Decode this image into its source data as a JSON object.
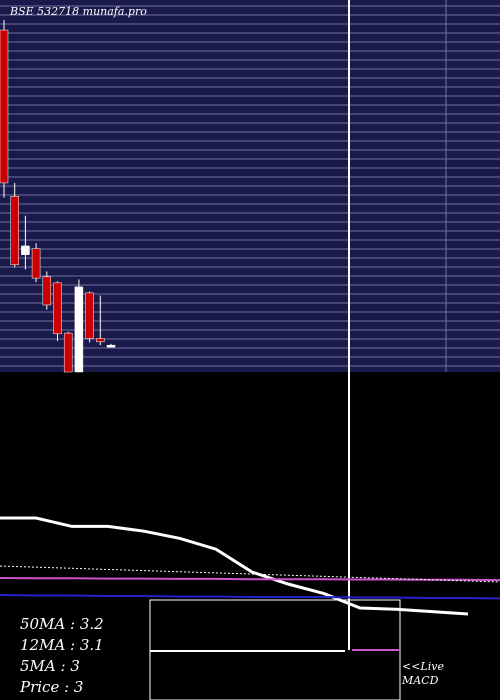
{
  "chart_data": {
    "type": "candlestick",
    "title": "BSE 532718 munafa.pro",
    "candles": [
      {
        "open": 4.6,
        "high": 4.75,
        "low": 2.1,
        "close": 2.32
      },
      {
        "open": 2.12,
        "high": 2.32,
        "low": 1.06,
        "close": 1.1
      },
      {
        "open": 1.25,
        "high": 1.83,
        "low": 1.03,
        "close": 1.38
      },
      {
        "open": 1.34,
        "high": 1.42,
        "low": 0.84,
        "close": 0.9
      },
      {
        "open": 0.92,
        "high": 1.0,
        "low": 0.43,
        "close": 0.5
      },
      {
        "open": 0.83,
        "high": 0.85,
        "low": -0.04,
        "close": 0.07
      },
      {
        "open": 0.08,
        "high": 0.1,
        "low": -0.5,
        "close": -0.5
      },
      {
        "open": -0.5,
        "high": 0.88,
        "low": -0.5,
        "close": 0.77
      },
      {
        "open": 0.68,
        "high": 0.7,
        "low": -0.06,
        "close": 0.0
      },
      {
        "open": 0.0,
        "high": 0.64,
        "low": -0.1,
        "close": -0.05
      },
      {
        "open": -0.1,
        "high": -0.08,
        "low": -0.12,
        "close": -0.1
      }
    ],
    "macd_line": [
      85,
      85,
      78,
      78,
      74,
      68,
      59,
      40,
      30,
      22,
      10,
      9,
      7,
      5
    ],
    "signal_line": [
      30,
      31,
      31,
      32,
      32,
      33,
      33,
      34,
      34,
      34,
      35,
      35,
      36,
      36,
      37
    ],
    "stats": [
      {
        "label": "50MA",
        "value": "3.2"
      },
      {
        "label": "12MA",
        "value": "3.1"
      },
      {
        "label": "5MA",
        "value": "3"
      },
      {
        "label": "Price",
        "value": "3"
      }
    ],
    "live_label": "<<Live",
    "macd_label": "MACD",
    "colors": {
      "panel_bg": "#1a1a4a",
      "grid": "#6e6ea8",
      "bear": "#cc0000",
      "bull": "#ffffff",
      "ma_blue": "#2222cc",
      "ma_purple": "#cc55cc"
    }
  }
}
